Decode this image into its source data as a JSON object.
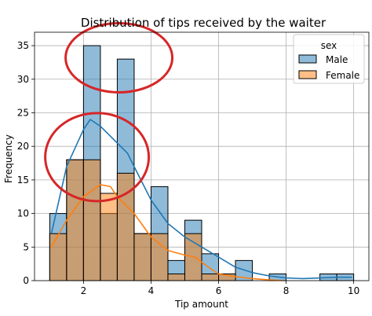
{
  "chart_data": {
    "type": "histogram",
    "title": "Distribution of tips received by the waiter",
    "xlabel": "Tip amount",
    "ylabel": "Frequency",
    "xlim": [
      0.55,
      10.45
    ],
    "ylim": [
      0,
      37
    ],
    "xticks": [
      2,
      4,
      6,
      8,
      10
    ],
    "yticks": [
      0,
      5,
      10,
      15,
      20,
      25,
      30,
      35
    ],
    "grid": true,
    "bin_edges": [
      1.0,
      1.5,
      2.0,
      2.5,
      3.0,
      3.5,
      4.0,
      4.5,
      5.0,
      5.5,
      6.0,
      6.5,
      7.0,
      7.5,
      8.0,
      8.5,
      9.0,
      9.5,
      10.0
    ],
    "legend": {
      "title": "sex",
      "placement": "upper right"
    },
    "series": [
      {
        "name": "Male",
        "color": "#1f77b4",
        "counts": [
          10,
          18,
          35,
          10,
          33,
          7,
          14,
          3,
          9,
          4,
          1,
          3,
          0,
          1,
          0,
          0,
          1,
          1
        ],
        "kde": [
          [
            1.05,
            7
          ],
          [
            1.5,
            17
          ],
          [
            2.0,
            22.5
          ],
          [
            2.2,
            24
          ],
          [
            2.5,
            23
          ],
          [
            3.0,
            20.5
          ],
          [
            3.3,
            19
          ],
          [
            3.6,
            16
          ],
          [
            4.0,
            12
          ],
          [
            4.5,
            8.5
          ],
          [
            5.0,
            6.5
          ],
          [
            5.5,
            5
          ],
          [
            6.0,
            3.5
          ],
          [
            6.5,
            2
          ],
          [
            7.0,
            1.2
          ],
          [
            7.5,
            0.7
          ],
          [
            8.0,
            0.4
          ],
          [
            8.5,
            0.3
          ],
          [
            9.0,
            0.4
          ],
          [
            9.5,
            0.5
          ],
          [
            9.95,
            0.5
          ]
        ]
      },
      {
        "name": "Female",
        "color": "#ff7f0e",
        "counts": [
          7,
          18,
          18,
          13,
          16,
          7,
          7,
          1,
          7,
          1,
          1,
          0,
          0,
          0,
          0,
          0,
          0,
          0
        ],
        "kde": [
          [
            1.05,
            5
          ],
          [
            1.5,
            9
          ],
          [
            2.0,
            12.5
          ],
          [
            2.5,
            14.3
          ],
          [
            2.8,
            14
          ],
          [
            3.0,
            12.5
          ],
          [
            3.5,
            10
          ],
          [
            4.0,
            6.5
          ],
          [
            4.5,
            4.5
          ],
          [
            5.0,
            3.8
          ],
          [
            5.3,
            3.5
          ],
          [
            5.7,
            2
          ],
          [
            6.0,
            1
          ],
          [
            6.5,
            0.6
          ],
          [
            7.0,
            0.3
          ],
          [
            7.5,
            0.1
          ],
          [
            7.9,
            0
          ]
        ]
      }
    ],
    "annotations": [
      {
        "type": "circle",
        "color": "#d62728"
      },
      {
        "type": "circle",
        "color": "#d62728"
      }
    ]
  }
}
